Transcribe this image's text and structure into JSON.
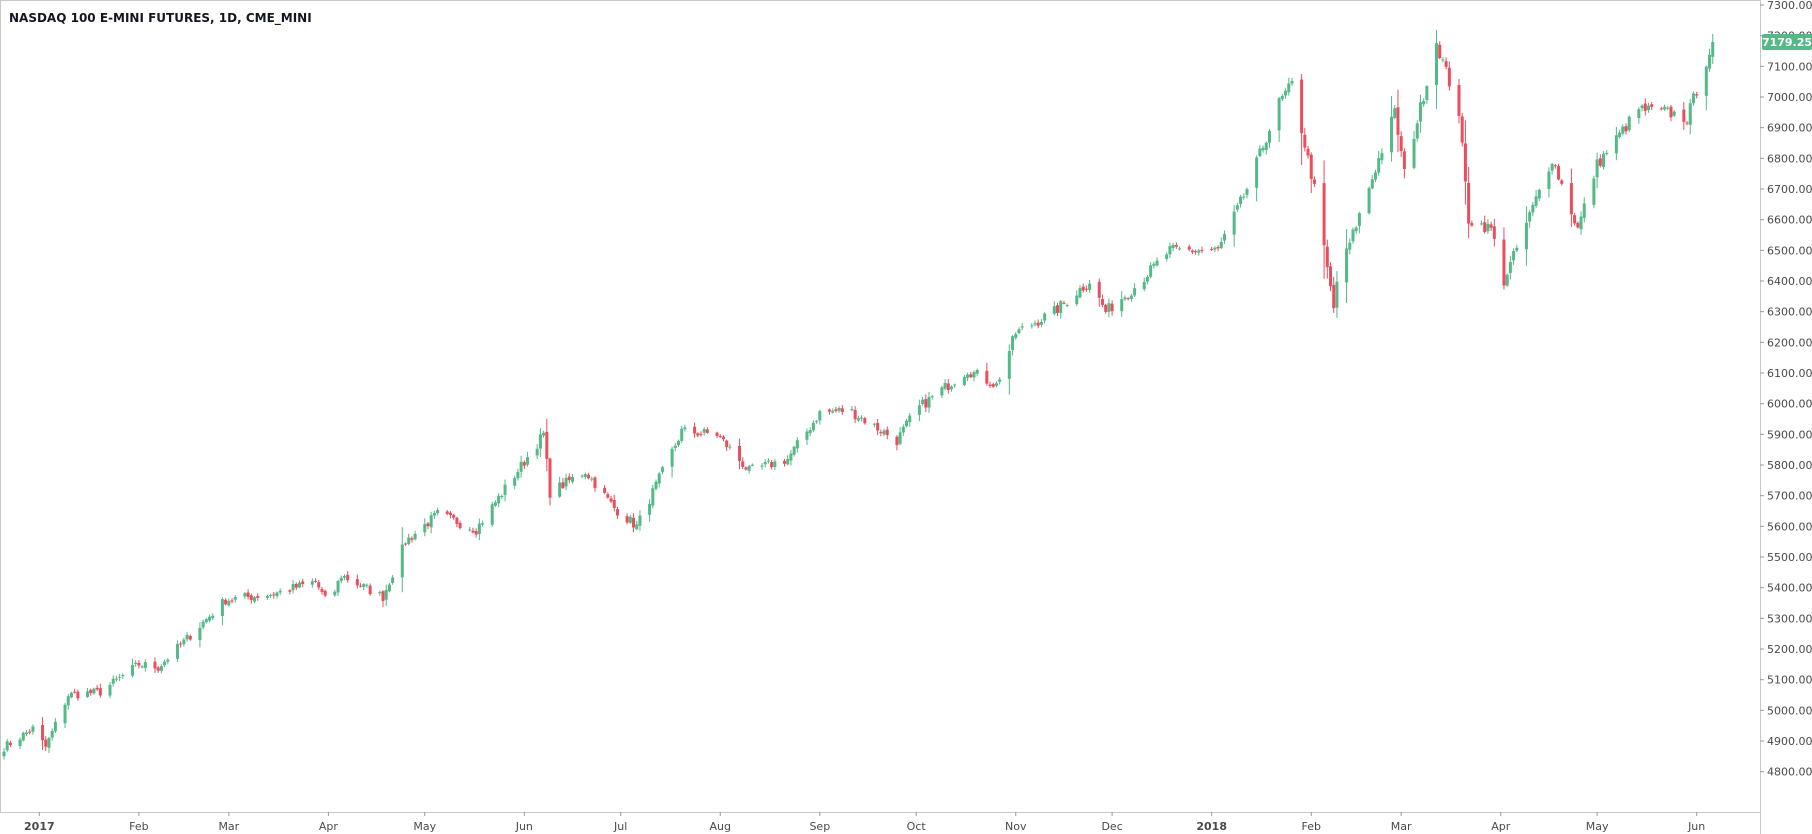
{
  "chart_data": {
    "type": "candlestick",
    "title": "NASDAQ 100 E-MINI FUTURES, 1D, CME_MINI",
    "ylim": [
      4750,
      7300
    ],
    "y_ticks": [
      4800,
      4900,
      5000,
      5100,
      5200,
      5300,
      5400,
      5500,
      5600,
      5700,
      5800,
      5900,
      6000,
      6100,
      6200,
      6300,
      6400,
      6500,
      6600,
      6700,
      6800,
      6900,
      7000,
      7100,
      7200,
      7300
    ],
    "y_tick_labels": [
      "4800.00",
      "4900.00",
      "5000.00",
      "5100.00",
      "5200.00",
      "5300.00",
      "5400.00",
      "5500.00",
      "5600.00",
      "5700.00",
      "5800.00",
      "5900.00",
      "6000.00",
      "6100.00",
      "6200.00",
      "6300.00",
      "6400.00",
      "6500.00",
      "6600.00",
      "6700.00",
      "6800.00",
      "6900.00",
      "7000.00",
      "7100.00",
      "7200.00",
      "7300.00"
    ],
    "x_range": [
      "2016-12-21",
      "2018-06-12"
    ],
    "x_ticks": [
      {
        "date": "2017-01-01",
        "label": "2017",
        "bold": true
      },
      {
        "date": "2017-02-01",
        "label": "Feb"
      },
      {
        "date": "2017-03-01",
        "label": "Mar"
      },
      {
        "date": "2017-04-01",
        "label": "Apr"
      },
      {
        "date": "2017-05-01",
        "label": "May"
      },
      {
        "date": "2017-06-01",
        "label": "Jun"
      },
      {
        "date": "2017-07-01",
        "label": "Jul"
      },
      {
        "date": "2017-08-01",
        "label": "Aug"
      },
      {
        "date": "2017-09-01",
        "label": "Sep"
      },
      {
        "date": "2017-10-01",
        "label": "Oct"
      },
      {
        "date": "2017-11-01",
        "label": "Nov"
      },
      {
        "date": "2017-12-01",
        "label": "Dec"
      },
      {
        "date": "2018-01-01",
        "label": "2018",
        "bold": true
      },
      {
        "date": "2018-02-01",
        "label": "Feb"
      },
      {
        "date": "2018-03-01",
        "label": "Mar"
      },
      {
        "date": "2018-04-01",
        "label": "Apr"
      },
      {
        "date": "2018-05-01",
        "label": "May"
      },
      {
        "date": "2018-06-01",
        "label": "Jun"
      }
    ],
    "last_price": 7179.25,
    "last_price_label": "7179.25",
    "up_color": "#53b987",
    "down_color": "#eb4d5c",
    "grid": false,
    "close_path": [
      [
        "2016-12-21",
        4880
      ],
      [
        "2016-12-30",
        4940
      ],
      [
        "2017-01-03",
        4880
      ],
      [
        "2017-01-10",
        5050
      ],
      [
        "2017-01-20",
        5060
      ],
      [
        "2017-02-01",
        5150
      ],
      [
        "2017-02-07",
        5140
      ],
      [
        "2017-02-28",
        5360
      ],
      [
        "2017-03-15",
        5380
      ],
      [
        "2017-03-28",
        5420
      ],
      [
        "2017-04-01",
        5340
      ],
      [
        "2017-04-05",
        5440
      ],
      [
        "2017-04-18",
        5370
      ],
      [
        "2017-04-25",
        5550
      ],
      [
        "2017-05-05",
        5640
      ],
      [
        "2017-05-17",
        5590
      ],
      [
        "2017-06-07",
        5900
      ],
      [
        "2017-06-09",
        5710
      ],
      [
        "2017-06-20",
        5780
      ],
      [
        "2017-06-29",
        5660
      ],
      [
        "2017-07-06",
        5600
      ],
      [
        "2017-07-20",
        5910
      ],
      [
        "2017-07-31",
        5900
      ],
      [
        "2017-08-10",
        5780
      ],
      [
        "2017-08-22",
        5820
      ],
      [
        "2017-09-01",
        5970
      ],
      [
        "2017-09-10",
        5980
      ],
      [
        "2017-09-25",
        5880
      ],
      [
        "2017-10-01",
        5980
      ],
      [
        "2017-10-17",
        6110
      ],
      [
        "2017-10-26",
        6060
      ],
      [
        "2017-11-01",
        6230
      ],
      [
        "2017-11-13",
        6300
      ],
      [
        "2017-11-24",
        6400
      ],
      [
        "2017-11-29",
        6300
      ],
      [
        "2017-12-08",
        6380
      ],
      [
        "2017-12-19",
        6500
      ],
      [
        "2018-01-03",
        6500
      ],
      [
        "2018-01-12",
        6700
      ],
      [
        "2018-01-22",
        6980
      ],
      [
        "2018-01-26",
        7040
      ],
      [
        "2018-02-02",
        6700
      ],
      [
        "2018-02-08",
        6310
      ],
      [
        "2018-02-09",
        6400
      ],
      [
        "2018-02-27",
        6950
      ],
      [
        "2018-03-02",
        6750
      ],
      [
        "2018-03-12",
        7180
      ],
      [
        "2018-03-19",
        6950
      ],
      [
        "2018-03-22",
        6600
      ],
      [
        "2018-03-29",
        6570
      ],
      [
        "2018-04-02",
        6400
      ],
      [
        "2018-04-17",
        6800
      ],
      [
        "2018-04-25",
        6570
      ],
      [
        "2018-05-01",
        6780
      ],
      [
        "2018-05-14",
        6960
      ],
      [
        "2018-05-23",
        6950
      ],
      [
        "2018-05-29",
        6930
      ],
      [
        "2018-06-06",
        7179.25
      ]
    ]
  }
}
